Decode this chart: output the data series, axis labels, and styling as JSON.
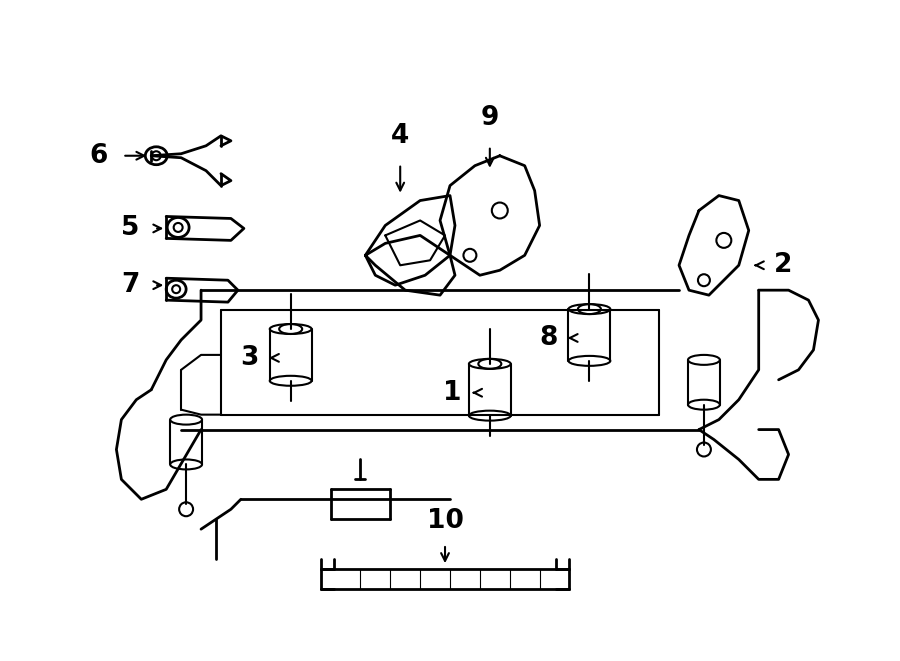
{
  "bg_color": "#ffffff",
  "line_color": "#000000",
  "line_width": 1.5,
  "figsize": [
    9.0,
    6.61
  ],
  "dpi": 100
}
